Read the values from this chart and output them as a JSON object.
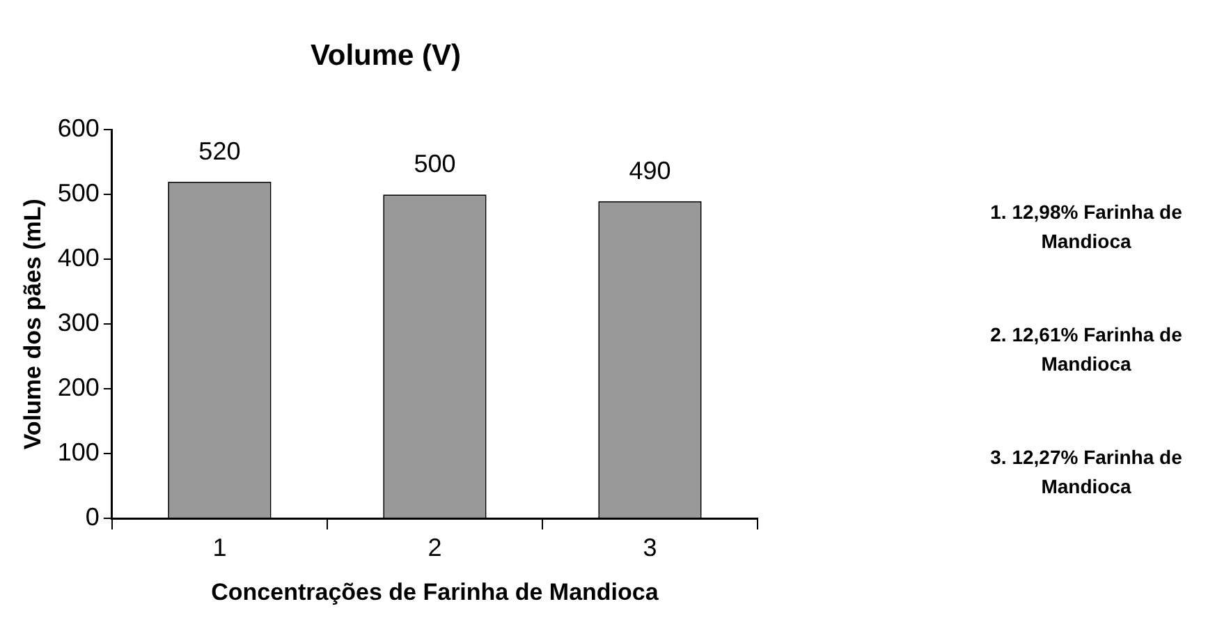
{
  "chart_data": {
    "type": "bar",
    "title": "Volume (V)",
    "xlabel": "Concentrações de Farinha de Mandioca",
    "ylabel": "Volume dos pães (mL)",
    "categories": [
      "1",
      "2",
      "3"
    ],
    "values": [
      520,
      500,
      490
    ],
    "color": "#999999",
    "ylim": [
      0,
      600
    ],
    "yticks": [
      0,
      100,
      200,
      300,
      400,
      500,
      600
    ],
    "grid": false,
    "legend": false,
    "data_labels": true,
    "annotations": [
      "1. 12,98% Farinha de Mandioca",
      "2. 12,61% Farinha de Mandioca",
      "3. 12,27% Farinha de Mandioca"
    ]
  }
}
